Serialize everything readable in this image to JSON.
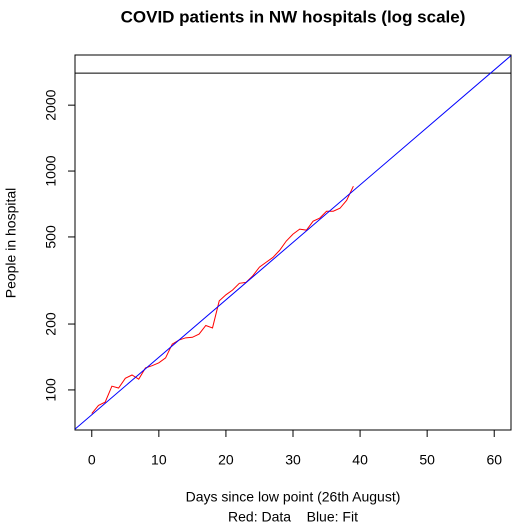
{
  "chart_data": {
    "type": "line",
    "title": "COVID patients in NW hospitals (log scale)",
    "xlabel": "Days since low point (26th August)",
    "note": "Red: Data    Blue: Fit",
    "ylabel": "People in hospital",
    "log_y": true,
    "xlim": [
      -2.5,
      62.5
    ],
    "xticks": [
      0,
      10,
      20,
      30,
      40,
      50,
      60
    ],
    "ylim": [
      65.6,
      3390
    ],
    "yticks": [
      100,
      200,
      500,
      1000,
      2000
    ],
    "hline": {
      "value": 2800,
      "color": "#000000"
    },
    "series": [
      {
        "color": "#ff0000",
        "x": [
          0,
          1,
          2,
          3,
          4,
          5,
          6,
          7,
          8,
          9,
          10,
          11,
          12,
          13,
          14,
          15,
          16,
          17,
          18,
          19,
          20,
          21,
          22,
          23,
          24,
          25,
          26,
          27,
          28,
          29,
          30,
          31,
          32,
          33,
          34,
          35,
          36,
          37,
          38,
          39
        ],
        "values": [
          78,
          85,
          88,
          104,
          102,
          113,
          117,
          112,
          126,
          129,
          133,
          140,
          162,
          169,
          173,
          174,
          180,
          197,
          192,
          255,
          272,
          286,
          307,
          310,
          332,
          364,
          383,
          403,
          434,
          479,
          515,
          543,
          537,
          590,
          610,
          655,
          655,
          676,
          735,
          853
        ]
      },
      {
        "color": "#0000ff",
        "x": [
          -2.5,
          62.5
        ],
        "values": [
          66.2,
          3368
        ]
      }
    ]
  }
}
